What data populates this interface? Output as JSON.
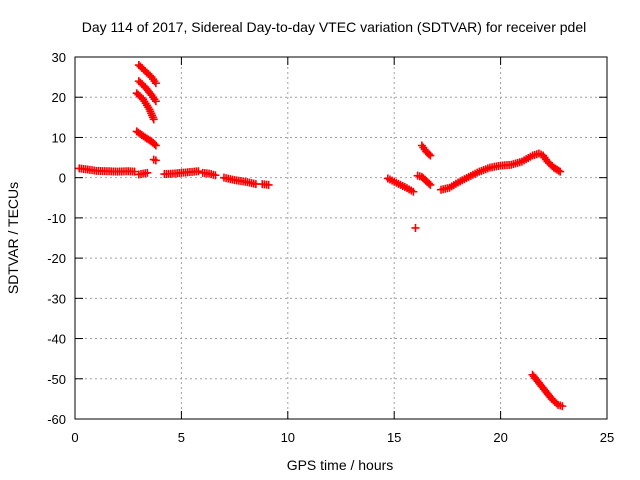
{
  "chart_data": {
    "type": "scatter",
    "title": "Day 114 of 2017, Sidereal Day-to-day VTEC variation (SDTVAR) for receiver pdel",
    "xlabel": "GPS time / hours",
    "ylabel": "SDTVAR / TECUs",
    "xlim": [
      0,
      25
    ],
    "ylim": [
      -60,
      30
    ],
    "xticks": [
      0,
      5,
      10,
      15,
      20,
      25
    ],
    "yticks": [
      30,
      20,
      10,
      0,
      -10,
      -20,
      -30,
      -40,
      -50,
      -60
    ],
    "grid": true,
    "marker": "+",
    "series": [
      {
        "name": "SDTVAR",
        "color": "#ff0000",
        "segments": [
          {
            "x": [
              0.2,
              0.5,
              1.0,
              1.5,
              2.0,
              2.5,
              2.8
            ],
            "y": [
              2.3,
              2.1,
              1.7,
              1.6,
              1.5,
              1.6,
              1.5
            ]
          },
          {
            "x": [
              3.0,
              3.2,
              3.4
            ],
            "y": [
              0.8,
              1.0,
              1.2
            ]
          },
          {
            "x": [
              3.0,
              3.3,
              3.6,
              3.8
            ],
            "y": [
              28.0,
              26.5,
              25.0,
              23.5
            ]
          },
          {
            "x": [
              3.0,
              3.3,
              3.6,
              3.8
            ],
            "y": [
              24.0,
              22.5,
              20.5,
              19.0
            ]
          },
          {
            "x": [
              2.9,
              3.2,
              3.5,
              3.7
            ],
            "y": [
              21.0,
              19.5,
              17.0,
              14.5
            ]
          },
          {
            "x": [
              2.9,
              3.3,
              3.6,
              3.8
            ],
            "y": [
              11.5,
              10.0,
              9.0,
              8.0
            ]
          },
          {
            "x": [
              3.7,
              3.8
            ],
            "y": [
              4.5,
              4.3
            ]
          },
          {
            "x": [
              4.2,
              4.6,
              5.0,
              5.4,
              5.8
            ],
            "y": [
              0.9,
              1.0,
              1.2,
              1.4,
              1.6
            ]
          },
          {
            "x": [
              6.0,
              6.3,
              6.6
            ],
            "y": [
              1.2,
              1.0,
              0.6
            ]
          },
          {
            "x": [
              7.0,
              7.5,
              8.0,
              8.5
            ],
            "y": [
              0.0,
              -0.6,
              -1.0,
              -1.6
            ]
          },
          {
            "x": [
              8.8,
              9.1
            ],
            "y": [
              -1.6,
              -1.8
            ]
          },
          {
            "x": [
              14.7,
              15.0,
              15.3,
              15.6,
              15.9
            ],
            "y": [
              -0.2,
              -1.0,
              -1.8,
              -2.6,
              -3.5
            ]
          },
          {
            "x": [
              16.0
            ],
            "y": [
              -12.5
            ]
          },
          {
            "x": [
              16.1,
              16.3,
              16.5,
              16.7
            ],
            "y": [
              0.5,
              0.2,
              -0.8,
              -1.8
            ]
          },
          {
            "x": [
              16.3,
              16.5,
              16.7
            ],
            "y": [
              8.0,
              6.5,
              5.5
            ]
          },
          {
            "x": [
              17.2,
              17.6,
              18.0,
              18.5,
              19.0,
              19.5,
              20.0,
              20.5,
              21.0,
              21.5,
              21.8,
              22.0,
              22.2,
              22.5,
              22.8
            ],
            "y": [
              -3.0,
              -2.5,
              -1.2,
              0.2,
              1.5,
              2.5,
              3.0,
              3.2,
              4.0,
              5.5,
              6.0,
              5.5,
              4.0,
              2.5,
              1.5
            ]
          },
          {
            "x": [
              21.5,
              21.8,
              22.1,
              22.4,
              22.7,
              22.9
            ],
            "y": [
              -49.0,
              -51.0,
              -53.0,
              -55.0,
              -56.5,
              -56.8
            ]
          }
        ]
      }
    ]
  }
}
